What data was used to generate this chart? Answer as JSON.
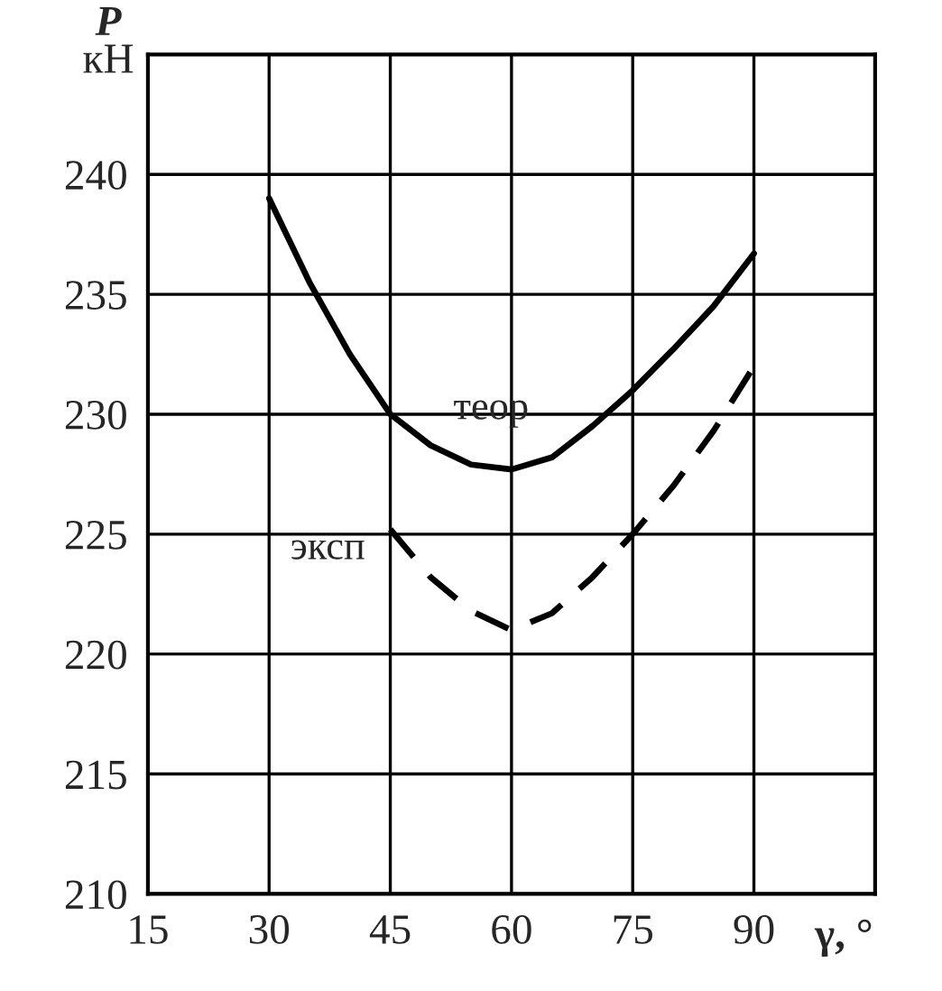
{
  "chart_data": {
    "type": "line",
    "xlabel": "γ, °",
    "ylabel": "P\nкН",
    "xlim": [
      15,
      105
    ],
    "xticks": [
      15,
      30,
      45,
      60,
      75,
      90
    ],
    "ylim": [
      210,
      245
    ],
    "yticks": [
      210,
      215,
      220,
      225,
      230,
      235,
      240
    ],
    "grid": true,
    "legend": false,
    "series": [
      {
        "name": "теор",
        "color": "#000000",
        "line_style": "solid",
        "x": [
          30,
          35,
          40,
          45,
          50,
          55,
          60,
          65,
          70,
          75,
          80,
          85,
          90
        ],
        "values": [
          239,
          235.5,
          232.5,
          230,
          228.7,
          227.9,
          227.7,
          228.2,
          229.5,
          231,
          232.7,
          234.5,
          236.7
        ]
      },
      {
        "name": "эксп",
        "color": "#000000",
        "line_style": "dashed",
        "x": [
          45,
          50,
          55,
          60,
          65,
          70,
          75,
          80,
          85,
          90
        ],
        "values": [
          225.2,
          223.2,
          221.8,
          221,
          221.7,
          223.2,
          225,
          227,
          229.3,
          232
        ]
      }
    ]
  }
}
